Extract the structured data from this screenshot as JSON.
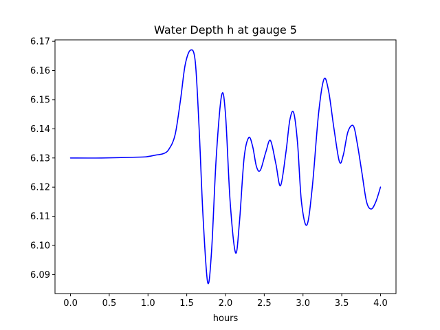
{
  "chart_data": {
    "type": "line",
    "title": "Water Depth h at gauge 5",
    "xlabel": "hours",
    "ylabel": "",
    "xlim": [
      -0.2,
      4.2
    ],
    "ylim": [
      6.0835,
      6.1705
    ],
    "x_ticks": [
      0.0,
      0.5,
      1.0,
      1.5,
      2.0,
      2.5,
      3.0,
      3.5,
      4.0
    ],
    "x_tick_labels": [
      "0.0",
      "0.5",
      "1.0",
      "1.5",
      "2.0",
      "2.5",
      "3.0",
      "3.5",
      "4.0"
    ],
    "y_ticks": [
      6.09,
      6.1,
      6.11,
      6.12,
      6.13,
      6.14,
      6.15,
      6.16,
      6.17
    ],
    "y_tick_labels": [
      "6.09",
      "6.10",
      "6.11",
      "6.12",
      "6.13",
      "6.14",
      "6.15",
      "6.16",
      "6.17"
    ],
    "grid": false,
    "legend": "none",
    "series": [
      {
        "color": "#0000ff",
        "x": [
          0.0,
          0.4,
          0.9,
          1.0,
          1.1,
          1.2,
          1.27,
          1.35,
          1.42,
          1.48,
          1.55,
          1.61,
          1.66,
          1.71,
          1.77,
          1.82,
          1.88,
          1.95,
          2.0,
          2.06,
          2.13,
          2.18,
          2.24,
          2.3,
          2.35,
          2.4,
          2.45,
          2.52,
          2.58,
          2.65,
          2.71,
          2.78,
          2.83,
          2.88,
          2.93,
          2.98,
          3.05,
          3.12,
          3.2,
          3.27,
          3.33,
          3.4,
          3.47,
          3.52,
          3.58,
          3.65,
          3.7,
          3.76,
          3.82,
          3.88,
          3.94,
          4.0
        ],
        "y": [
          6.13,
          6.13,
          6.1303,
          6.1305,
          6.131,
          6.1315,
          6.133,
          6.138,
          6.15,
          6.162,
          6.167,
          6.163,
          6.14,
          6.11,
          6.0873,
          6.098,
          6.13,
          6.1515,
          6.145,
          6.115,
          6.0975,
          6.108,
          6.13,
          6.137,
          6.134,
          6.127,
          6.1258,
          6.132,
          6.136,
          6.128,
          6.1205,
          6.132,
          6.143,
          6.1455,
          6.135,
          6.115,
          6.107,
          6.12,
          6.145,
          6.157,
          6.153,
          6.14,
          6.1287,
          6.131,
          6.139,
          6.141,
          6.135,
          6.125,
          6.115,
          6.1125,
          6.115,
          6.12
        ]
      }
    ]
  }
}
